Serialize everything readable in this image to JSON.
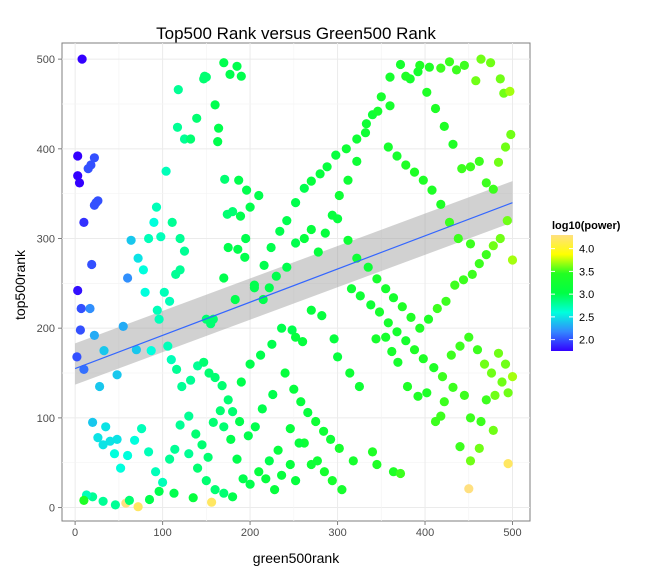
{
  "chart_data": {
    "type": "scatter",
    "title": "Top500 Rank versus Green500 Rank",
    "xlabel": "green500rank",
    "ylabel": "top500rank",
    "xlim": [
      -15,
      520
    ],
    "ylim": [
      -15,
      518
    ],
    "xticks": [
      "0",
      "100",
      "200",
      "300",
      "400",
      "500"
    ],
    "yticks": [
      "0",
      "100",
      "200",
      "300",
      "400",
      "500"
    ],
    "grid": true,
    "legend": {
      "title": "log10(power)",
      "position": "right",
      "labels": [
        "2.0",
        "2.5",
        "3.0",
        "3.5",
        "4.0"
      ],
      "values": [
        2.0,
        2.5,
        3.0,
        3.5,
        4.0
      ],
      "range": [
        1.75,
        4.3
      ]
    },
    "color_scale": [
      "#3300ff",
      "#3388ff",
      "#00ffdd",
      "#00ff44",
      "#22ff22",
      "#ffff00",
      "#ffe080"
    ],
    "trend": {
      "x": [
        0,
        500
      ],
      "y": [
        155,
        340
      ],
      "band_lower": [
        137,
        318
      ],
      "band_upper": [
        183,
        364
      ]
    },
    "points": [
      [
        8,
        500,
        1.75
      ],
      [
        3,
        392,
        1.75
      ],
      [
        3,
        370,
        1.75
      ],
      [
        5,
        362,
        1.75
      ],
      [
        22,
        390,
        2.0
      ],
      [
        15,
        378,
        2.0
      ],
      [
        18,
        382,
        2.0
      ],
      [
        22,
        337,
        2.0
      ],
      [
        24,
        340,
        2.0
      ],
      [
        26,
        342,
        2.0
      ],
      [
        10,
        318,
        1.9
      ],
      [
        3,
        242,
        1.8
      ],
      [
        19,
        271,
        2.0
      ],
      [
        7,
        222,
        2.0
      ],
      [
        6,
        198,
        2.0
      ],
      [
        2,
        168,
        2.0
      ],
      [
        10,
        154,
        2.1
      ],
      [
        17,
        222,
        2.2
      ],
      [
        22,
        192,
        2.3
      ],
      [
        33,
        175,
        2.4
      ],
      [
        28,
        135,
        2.4
      ],
      [
        48,
        148,
        2.4
      ],
      [
        55,
        202,
        2.3
      ],
      [
        60,
        256,
        2.2
      ],
      [
        64,
        298,
        2.4
      ],
      [
        72,
        278,
        2.5
      ],
      [
        78,
        265,
        2.6
      ],
      [
        70,
        176,
        2.4
      ],
      [
        80,
        240,
        2.6
      ],
      [
        90,
        318,
        2.6
      ],
      [
        93,
        335,
        2.7
      ],
      [
        84,
        300,
        2.7
      ],
      [
        98,
        302,
        2.7
      ],
      [
        104,
        375,
        2.7
      ],
      [
        111,
        318,
        2.8
      ],
      [
        117,
        424,
        2.8
      ],
      [
        118,
        466,
        2.8
      ],
      [
        125,
        411,
        2.8
      ],
      [
        132,
        411,
        2.9
      ],
      [
        139,
        434,
        2.9
      ],
      [
        147,
        478,
        2.9
      ],
      [
        148,
        481,
        2.9
      ],
      [
        150,
        480,
        2.9
      ],
      [
        160,
        449,
        3.0
      ],
      [
        164,
        423,
        3.0
      ],
      [
        163,
        408,
        3.0
      ],
      [
        170,
        496,
        3.0
      ],
      [
        177,
        483,
        3.0
      ],
      [
        185,
        492,
        3.0
      ],
      [
        190,
        481,
        3.0
      ],
      [
        171,
        366,
        2.9
      ],
      [
        187,
        365,
        3.0
      ],
      [
        196,
        354,
        3.0
      ],
      [
        174,
        327,
        2.9
      ],
      [
        180,
        330,
        2.9
      ],
      [
        189,
        325,
        3.0
      ],
      [
        200,
        335,
        3.0
      ],
      [
        195,
        300,
        3.0
      ],
      [
        210,
        348,
        3.0
      ],
      [
        175,
        290,
        3.0
      ],
      [
        186,
        288,
        3.0
      ],
      [
        194,
        279,
        3.0
      ],
      [
        170,
        256,
        3.0
      ],
      [
        205,
        245,
        3.0
      ],
      [
        183,
        232,
        3.0
      ],
      [
        150,
        210,
        2.9
      ],
      [
        155,
        205,
        2.9
      ],
      [
        158,
        210,
        2.9
      ],
      [
        120,
        300,
        2.8
      ],
      [
        125,
        286,
        2.8
      ],
      [
        120,
        265,
        2.8
      ],
      [
        115,
        260,
        2.8
      ],
      [
        108,
        230,
        2.7
      ],
      [
        102,
        240,
        2.7
      ],
      [
        96,
        210,
        2.7
      ],
      [
        94,
        220,
        2.7
      ],
      [
        87,
        175,
        2.6
      ],
      [
        106,
        180,
        2.7
      ],
      [
        110,
        165,
        2.7
      ],
      [
        116,
        154,
        2.8
      ],
      [
        122,
        135,
        2.8
      ],
      [
        132,
        142,
        2.8
      ],
      [
        140,
        158,
        2.8
      ],
      [
        147,
        162,
        2.9
      ],
      [
        153,
        150,
        2.9
      ],
      [
        160,
        145,
        2.9
      ],
      [
        168,
        136,
        2.9
      ],
      [
        175,
        120,
        2.9
      ],
      [
        180,
        107,
        2.9
      ],
      [
        190,
        140,
        3.0
      ],
      [
        200,
        160,
        3.0
      ],
      [
        212,
        170,
        3.0
      ],
      [
        225,
        182,
        3.0
      ],
      [
        236,
        200,
        3.0
      ],
      [
        248,
        198,
        3.0
      ],
      [
        252,
        190,
        3.1
      ],
      [
        260,
        185,
        3.1
      ],
      [
        270,
        220,
        3.1
      ],
      [
        282,
        214,
        3.1
      ],
      [
        296,
        188,
        3.1
      ],
      [
        300,
        168,
        3.1
      ],
      [
        314,
        150,
        3.2
      ],
      [
        325,
        135,
        3.2
      ],
      [
        344,
        188,
        3.3
      ],
      [
        355,
        190,
        3.3
      ],
      [
        362,
        174,
        3.3
      ],
      [
        369,
        162,
        3.3
      ],
      [
        380,
        135,
        3.4
      ],
      [
        392,
        124,
        3.4
      ],
      [
        402,
        128,
        3.4
      ],
      [
        412,
        96,
        3.5
      ],
      [
        422,
        118,
        3.5
      ],
      [
        432,
        134,
        3.5
      ],
      [
        445,
        125,
        3.5
      ],
      [
        452,
        100,
        3.5
      ],
      [
        464,
        96,
        3.5
      ],
      [
        470,
        120,
        3.5
      ],
      [
        480,
        125,
        3.6
      ],
      [
        488,
        140,
        3.6
      ],
      [
        495,
        128,
        3.6
      ],
      [
        48,
        76,
        2.5
      ],
      [
        40,
        74,
        2.5
      ],
      [
        32,
        70,
        2.5
      ],
      [
        26,
        78,
        2.5
      ],
      [
        35,
        90,
        2.5
      ],
      [
        20,
        95,
        2.4
      ],
      [
        45,
        60,
        2.6
      ],
      [
        52,
        44,
        2.6
      ],
      [
        60,
        58,
        2.6
      ],
      [
        68,
        75,
        2.6
      ],
      [
        76,
        88,
        2.7
      ],
      [
        84,
        62,
        2.7
      ],
      [
        92,
        40,
        2.7
      ],
      [
        100,
        28,
        2.7
      ],
      [
        108,
        54,
        2.8
      ],
      [
        114,
        65,
        2.8
      ],
      [
        120,
        92,
        2.8
      ],
      [
        130,
        102,
        2.8
      ],
      [
        138,
        82,
        2.9
      ],
      [
        145,
        70,
        2.9
      ],
      [
        152,
        56,
        2.9
      ],
      [
        158,
        95,
        2.9
      ],
      [
        166,
        108,
        2.9
      ],
      [
        170,
        90,
        2.9
      ],
      [
        178,
        76,
        3.0
      ],
      [
        185,
        54,
        3.0
      ],
      [
        192,
        32,
        3.0
      ],
      [
        200,
        26,
        3.0
      ],
      [
        210,
        40,
        3.1
      ],
      [
        218,
        32,
        3.1
      ],
      [
        228,
        20,
        3.1
      ],
      [
        236,
        36,
        3.1
      ],
      [
        246,
        48,
        3.1
      ],
      [
        252,
        30,
        3.1
      ],
      [
        262,
        72,
        3.2
      ],
      [
        270,
        48,
        3.2
      ],
      [
        277,
        52,
        3.2
      ],
      [
        285,
        40,
        3.3
      ],
      [
        294,
        30,
        3.3
      ],
      [
        305,
        20,
        3.3
      ],
      [
        318,
        52,
        3.3
      ],
      [
        340,
        62,
        3.4
      ],
      [
        345,
        48,
        3.4
      ],
      [
        364,
        40,
        3.4
      ],
      [
        372,
        38,
        3.5
      ],
      [
        418,
        102,
        3.5
      ],
      [
        440,
        68,
        3.5
      ],
      [
        452,
        52,
        3.6
      ],
      [
        462,
        66,
        3.6
      ],
      [
        478,
        86,
        3.6
      ],
      [
        495,
        49,
        4.2
      ],
      [
        450,
        21,
        4.3
      ],
      [
        156,
        6,
        4.2
      ],
      [
        135,
        11,
        3.1
      ],
      [
        113,
        16,
        3.0
      ],
      [
        72,
        1,
        4.2
      ],
      [
        58,
        5,
        4.3
      ],
      [
        32,
        7,
        2.8
      ],
      [
        20,
        12,
        2.8
      ],
      [
        13,
        14,
        2.7
      ],
      [
        10,
        8,
        3.4
      ],
      [
        46,
        3,
        2.8
      ],
      [
        62,
        8,
        2.9
      ],
      [
        85,
        9,
        3.0
      ],
      [
        96,
        18,
        3.0
      ],
      [
        205,
        248,
        3.0
      ],
      [
        215,
        232,
        3.0
      ],
      [
        222,
        245,
        3.0
      ],
      [
        230,
        258,
        3.0
      ],
      [
        242,
        268,
        3.0
      ],
      [
        252,
        295,
        3.0
      ],
      [
        262,
        300,
        3.1
      ],
      [
        270,
        310,
        3.1
      ],
      [
        278,
        285,
        3.1
      ],
      [
        286,
        306,
        3.1
      ],
      [
        294,
        326,
        3.1
      ],
      [
        302,
        348,
        3.2
      ],
      [
        312,
        365,
        3.2
      ],
      [
        322,
        386,
        3.2
      ],
      [
        332,
        418,
        3.2
      ],
      [
        340,
        438,
        3.2
      ],
      [
        350,
        458,
        3.3
      ],
      [
        360,
        480,
        3.3
      ],
      [
        372,
        494,
        3.3
      ],
      [
        383,
        478,
        3.3
      ],
      [
        392,
        486,
        3.3
      ],
      [
        402,
        463,
        3.4
      ],
      [
        412,
        445,
        3.4
      ],
      [
        422,
        425,
        3.4
      ],
      [
        432,
        405,
        3.4
      ],
      [
        442,
        378,
        3.5
      ],
      [
        452,
        380,
        3.5
      ],
      [
        462,
        386,
        3.5
      ],
      [
        470,
        362,
        3.5
      ],
      [
        478,
        355,
        3.5
      ],
      [
        484,
        385,
        3.6
      ],
      [
        492,
        402,
        3.6
      ],
      [
        498,
        416,
        3.6
      ],
      [
        486,
        478,
        3.6
      ],
      [
        490,
        462,
        3.6
      ],
      [
        497,
        464,
        3.7
      ],
      [
        475,
        496,
        3.6
      ],
      [
        464,
        500,
        3.6
      ],
      [
        458,
        476,
        3.6
      ],
      [
        445,
        493,
        3.5
      ],
      [
        436,
        488,
        3.5
      ],
      [
        428,
        497,
        3.5
      ],
      [
        418,
        490,
        3.5
      ],
      [
        405,
        491,
        3.4
      ],
      [
        394,
        493,
        3.4
      ],
      [
        378,
        481,
        3.4
      ],
      [
        360,
        448,
        3.3
      ],
      [
        346,
        442,
        3.3
      ],
      [
        333,
        428,
        3.2
      ],
      [
        322,
        411,
        3.2
      ],
      [
        310,
        400,
        3.2
      ],
      [
        298,
        393,
        3.1
      ],
      [
        288,
        380,
        3.1
      ],
      [
        280,
        372,
        3.1
      ],
      [
        270,
        364,
        3.1
      ],
      [
        262,
        356,
        3.0
      ],
      [
        252,
        340,
        3.0
      ],
      [
        242,
        320,
        3.0
      ],
      [
        234,
        308,
        3.0
      ],
      [
        224,
        290,
        3.0
      ],
      [
        216,
        270,
        3.0
      ],
      [
        300,
        322,
        3.1
      ],
      [
        312,
        298,
        3.2
      ],
      [
        322,
        278,
        3.2
      ],
      [
        335,
        268,
        3.2
      ],
      [
        345,
        255,
        3.3
      ],
      [
        355,
        244,
        3.3
      ],
      [
        364,
        234,
        3.3
      ],
      [
        374,
        224,
        3.4
      ],
      [
        384,
        212,
        3.4
      ],
      [
        394,
        200,
        3.4
      ],
      [
        404,
        210,
        3.4
      ],
      [
        414,
        222,
        3.5
      ],
      [
        424,
        230,
        3.5
      ],
      [
        434,
        248,
        3.5
      ],
      [
        444,
        254,
        3.5
      ],
      [
        454,
        260,
        3.5
      ],
      [
        462,
        272,
        3.5
      ],
      [
        470,
        282,
        3.5
      ],
      [
        478,
        292,
        3.6
      ],
      [
        486,
        300,
        3.6
      ],
      [
        494,
        320,
        3.6
      ],
      [
        500,
        276,
        3.7
      ],
      [
        452,
        294,
        3.5
      ],
      [
        438,
        300,
        3.5
      ],
      [
        428,
        318,
        3.5
      ],
      [
        418,
        338,
        3.4
      ],
      [
        408,
        354,
        3.4
      ],
      [
        398,
        365,
        3.4
      ],
      [
        388,
        374,
        3.4
      ],
      [
        378,
        382,
        3.4
      ],
      [
        368,
        392,
        3.3
      ],
      [
        358,
        402,
        3.3
      ],
      [
        316,
        244,
        3.2
      ],
      [
        326,
        236,
        3.2
      ],
      [
        338,
        226,
        3.2
      ],
      [
        348,
        218,
        3.3
      ],
      [
        358,
        206,
        3.3
      ],
      [
        368,
        196,
        3.3
      ],
      [
        378,
        186,
        3.3
      ],
      [
        388,
        176,
        3.4
      ],
      [
        398,
        166,
        3.4
      ],
      [
        410,
        156,
        3.4
      ],
      [
        420,
        146,
        3.5
      ],
      [
        430,
        170,
        3.5
      ],
      [
        440,
        180,
        3.5
      ],
      [
        450,
        190,
        3.5
      ],
      [
        460,
        176,
        3.5
      ],
      [
        468,
        160,
        3.6
      ],
      [
        476,
        150,
        3.6
      ],
      [
        484,
        172,
        3.6
      ],
      [
        492,
        160,
        3.6
      ],
      [
        500,
        146,
        3.7
      ],
      [
        240,
        150,
        3.1
      ],
      [
        250,
        132,
        3.1
      ],
      [
        258,
        118,
        3.1
      ],
      [
        266,
        106,
        3.1
      ],
      [
        275,
        96,
        3.2
      ],
      [
        284,
        85,
        3.2
      ],
      [
        292,
        76,
        3.2
      ],
      [
        302,
        66,
        3.3
      ],
      [
        226,
        126,
        3.0
      ],
      [
        214,
        110,
        3.0
      ],
      [
        206,
        90,
        3.0
      ],
      [
        198,
        80,
        3.0
      ],
      [
        188,
        96,
        3.0
      ],
      [
        246,
        88,
        3.1
      ],
      [
        256,
        72,
        3.1
      ],
      [
        232,
        64,
        3.1
      ],
      [
        222,
        52,
        3.0
      ],
      [
        130,
        60,
        2.8
      ],
      [
        140,
        44,
        2.9
      ],
      [
        150,
        30,
        2.9
      ],
      [
        160,
        20,
        2.9
      ],
      [
        170,
        16,
        2.9
      ],
      [
        180,
        12,
        3.0
      ]
    ]
  }
}
